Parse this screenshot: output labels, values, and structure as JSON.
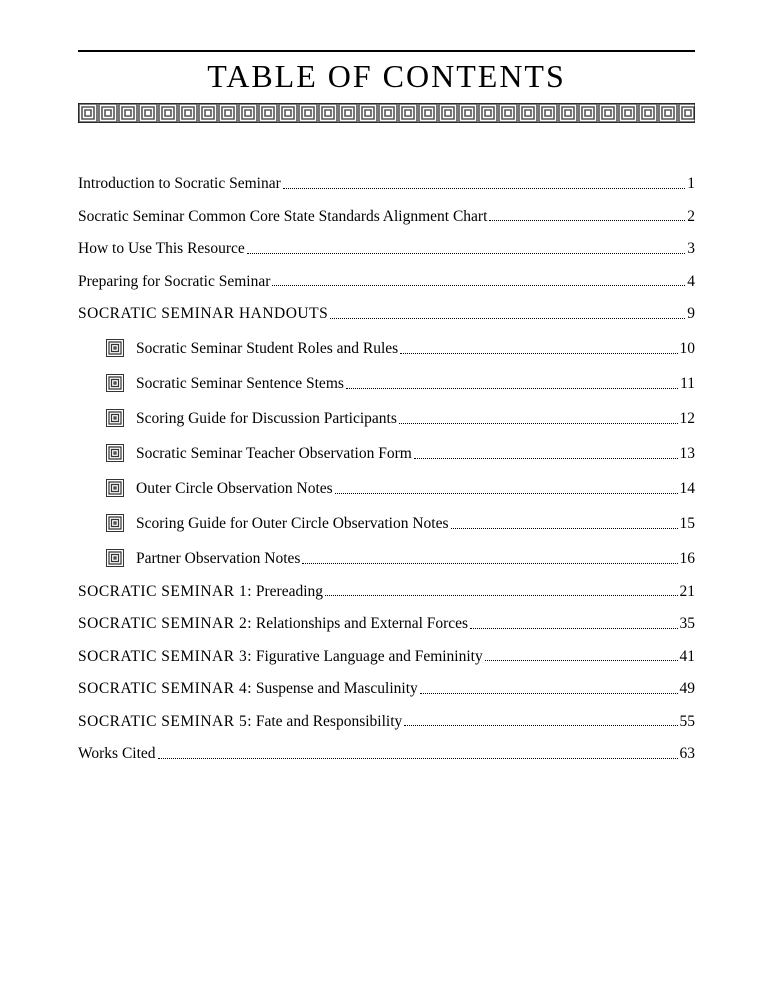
{
  "title": "TABLE OF CONTENTS",
  "entries": [
    {
      "label": "Introduction to Socratic Seminar",
      "page": "1",
      "indent": false,
      "bullet": false,
      "caps": false
    },
    {
      "label": "Socratic Seminar Common Core State Standards Alignment Chart",
      "page": "2",
      "indent": false,
      "bullet": false,
      "caps": false
    },
    {
      "label": "How to Use This Resource",
      "page": "3",
      "indent": false,
      "bullet": false,
      "caps": false
    },
    {
      "label": "Preparing for Socratic Seminar",
      "page": "4",
      "indent": false,
      "bullet": false,
      "caps": false
    },
    {
      "label": "SOCRATIC SEMINAR HANDOUTS",
      "page": "9",
      "indent": false,
      "bullet": false,
      "caps": true,
      "sublabel": ""
    },
    {
      "label": "Socratic Seminar Student Roles and Rules",
      "page": "10",
      "indent": true,
      "bullet": true,
      "caps": false
    },
    {
      "label": "Socratic Seminar Sentence Stems",
      "page": "11",
      "indent": true,
      "bullet": true,
      "caps": false
    },
    {
      "label": "Scoring Guide for Discussion Participants",
      "page": "12",
      "indent": true,
      "bullet": true,
      "caps": false
    },
    {
      "label": "Socratic Seminar Teacher Observation Form",
      "page": "13",
      "indent": true,
      "bullet": true,
      "caps": false
    },
    {
      "label": "Outer Circle Observation Notes",
      "page": "14",
      "indent": true,
      "bullet": true,
      "caps": false
    },
    {
      "label": "Scoring Guide for Outer Circle Observation Notes",
      "page": "15",
      "indent": true,
      "bullet": true,
      "caps": false
    },
    {
      "label": "Partner Observation Notes",
      "page": "16",
      "indent": true,
      "bullet": true,
      "caps": false
    },
    {
      "label_prefix": "SOCRATIC SEMINAR 1:",
      "label_suffix": " Prereading",
      "page": "21",
      "indent": false,
      "bullet": false,
      "mixed": true
    },
    {
      "label_prefix": "SOCRATIC SEMINAR 2:",
      "label_suffix": " Relationships and External Forces",
      "page": "35",
      "indent": false,
      "bullet": false,
      "mixed": true
    },
    {
      "label_prefix": "SOCRATIC SEMINAR 3:",
      "label_suffix": " Figurative Language and Femininity",
      "page": "41",
      "indent": false,
      "bullet": false,
      "mixed": true
    },
    {
      "label_prefix": "SOCRATIC SEMINAR 4:",
      "label_suffix": " Suspense and Masculinity",
      "page": "49",
      "indent": false,
      "bullet": false,
      "mixed": true
    },
    {
      "label_prefix": "SOCRATIC SEMINAR 5:",
      "label_suffix": " Fate and Responsibility",
      "page": "55",
      "indent": false,
      "bullet": false,
      "mixed": true
    },
    {
      "label": "Works Cited",
      "page": "63",
      "indent": false,
      "bullet": false,
      "caps": false
    }
  ],
  "colors": {
    "text": "#000000",
    "background": "#ffffff",
    "rule": "#000000",
    "greek_fill": "#6b6b6b"
  }
}
